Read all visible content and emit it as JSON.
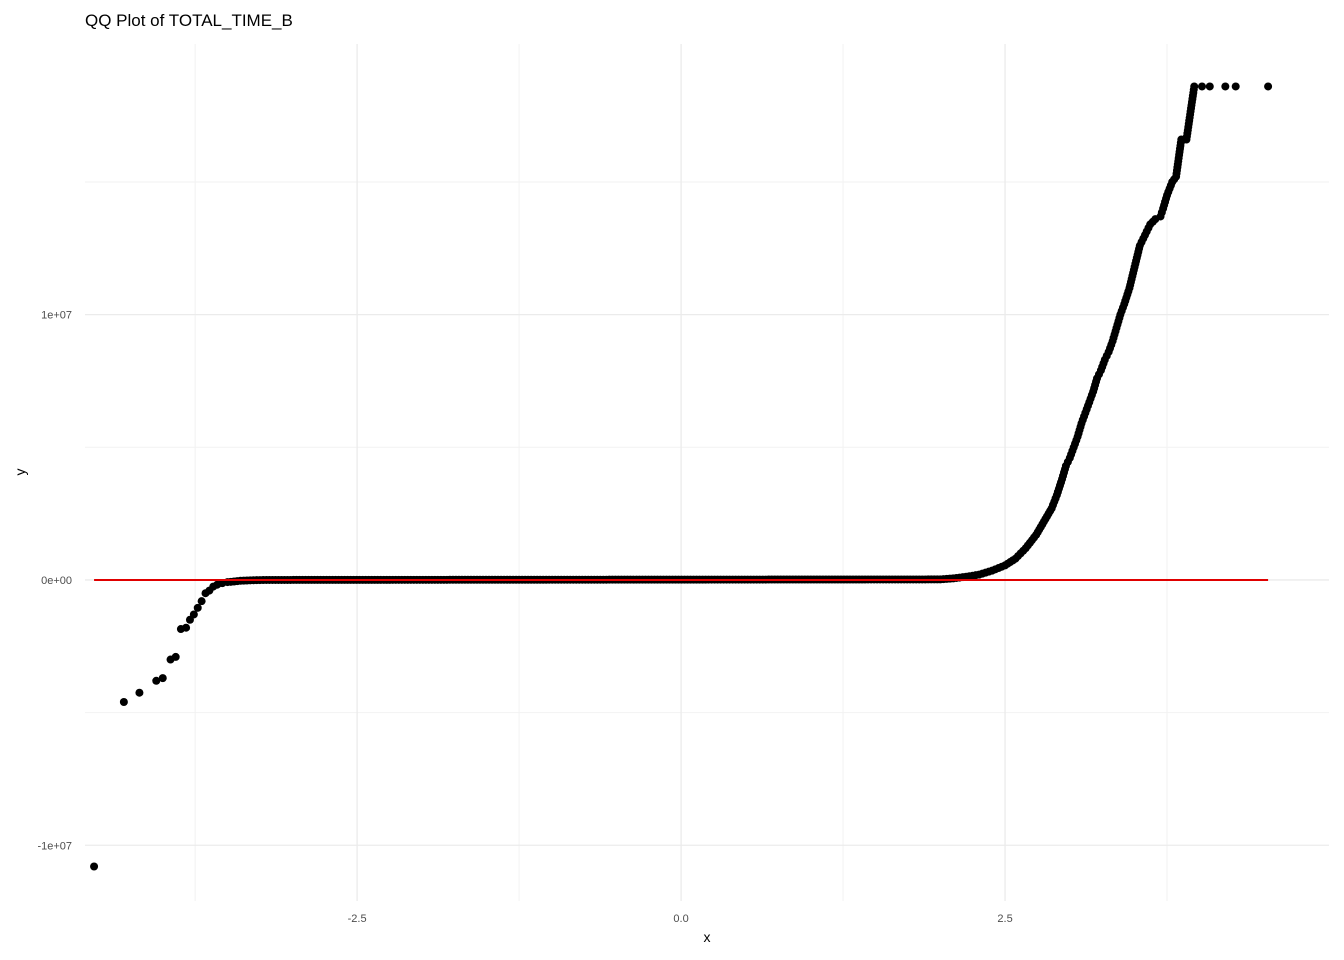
{
  "chart_data": {
    "type": "scatter",
    "title": "QQ Plot of TOTAL_TIME_B",
    "xlabel": "x",
    "ylabel": "y",
    "xlim": [
      -4.6,
      5.0
    ],
    "ylim": [
      -12100000,
      20200000
    ],
    "x_ticks": [
      -2.5,
      0.0,
      2.5
    ],
    "x_tick_labels": [
      "-2.5",
      "0.0",
      "2.5"
    ],
    "x_minor_ticks": [
      -3.75,
      -1.25,
      1.25,
      3.75
    ],
    "y_ticks": [
      -10000000,
      0,
      10000000
    ],
    "y_tick_labels": [
      "-1e+07",
      "0e+00",
      "1e+07"
    ],
    "y_minor_ticks": [
      -5000000,
      5000000,
      15000000
    ],
    "grid": true,
    "colors": {
      "points": "#000000",
      "reference_line": "#e00000",
      "grid": "#ebebeb"
    },
    "reference_line": {
      "x": [
        -4.53,
        4.53
      ],
      "y": [
        0,
        0
      ]
    },
    "points": {
      "x": [
        -4.53,
        -4.3,
        -4.18,
        -4.05,
        -4.0,
        -3.94,
        -3.9,
        -3.86,
        -3.82,
        -3.79,
        -3.76,
        -3.73,
        -3.7,
        -3.67,
        -3.64,
        -3.61,
        -3.58,
        -3.54,
        -3.5,
        -3.45,
        -3.4,
        -3.35,
        -3.3,
        -3.2,
        2.0,
        2.1,
        2.2,
        2.3,
        2.4,
        2.5,
        2.58,
        2.66,
        2.74,
        2.8,
        2.86,
        2.9,
        2.94,
        2.97,
        3.0,
        3.03,
        3.06,
        3.09,
        3.12,
        3.15,
        3.18,
        3.21,
        3.24,
        3.27,
        3.3,
        3.33,
        3.36,
        3.39,
        3.42,
        3.46,
        3.5,
        3.54,
        3.58,
        3.62,
        3.66,
        3.7,
        3.72,
        3.75,
        3.79,
        3.82,
        3.86,
        3.9,
        3.96,
        4.02,
        4.08,
        4.2,
        4.28,
        4.53
      ],
      "y": [
        -10800000,
        -4600000,
        -4250000,
        -3800000,
        -3700000,
        -3000000,
        -2900000,
        -1850000,
        -1800000,
        -1500000,
        -1300000,
        -1050000,
        -800000,
        -500000,
        -400000,
        -250000,
        -180000,
        -120000,
        -80000,
        -60000,
        -30000,
        -20000,
        -10000,
        0,
        20000,
        60000,
        120000,
        200000,
        350000,
        550000,
        800000,
        1200000,
        1700000,
        2200000,
        2700000,
        3200000,
        3800000,
        4300000,
        4600000,
        5000000,
        5400000,
        5900000,
        6300000,
        6700000,
        7100000,
        7600000,
        7900000,
        8300000,
        8600000,
        9000000,
        9500000,
        10000000,
        10400000,
        11000000,
        11800000,
        12600000,
        13000000,
        13400000,
        13600000,
        13700000,
        14000000,
        14500000,
        15000000,
        15200000,
        16600000,
        16600000,
        18600000,
        18600000,
        18600000,
        18600000,
        18600000,
        18600000
      ]
    }
  }
}
